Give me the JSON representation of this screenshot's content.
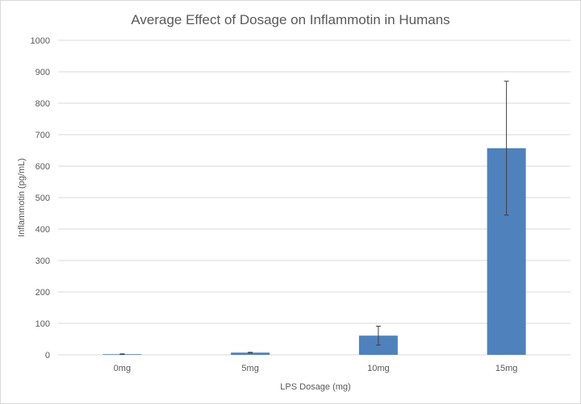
{
  "chart_data": {
    "type": "bar",
    "title": "Average Effect of Dosage on Inflammotin in Humans",
    "xlabel": "LPS Dosage (mg)",
    "ylabel": "Inflammotin (pg/mL)",
    "categories": [
      "0mg",
      "5mg",
      "10mg",
      "15mg"
    ],
    "values": [
      2,
      7,
      61,
      657
    ],
    "error": [
      1,
      1,
      30,
      213
    ],
    "ylim": [
      0,
      1000
    ],
    "yticks": [
      0,
      100,
      200,
      300,
      400,
      500,
      600,
      700,
      800,
      900,
      1000
    ],
    "grid": true,
    "legend": "none",
    "bar_color": "#4f81bd"
  }
}
